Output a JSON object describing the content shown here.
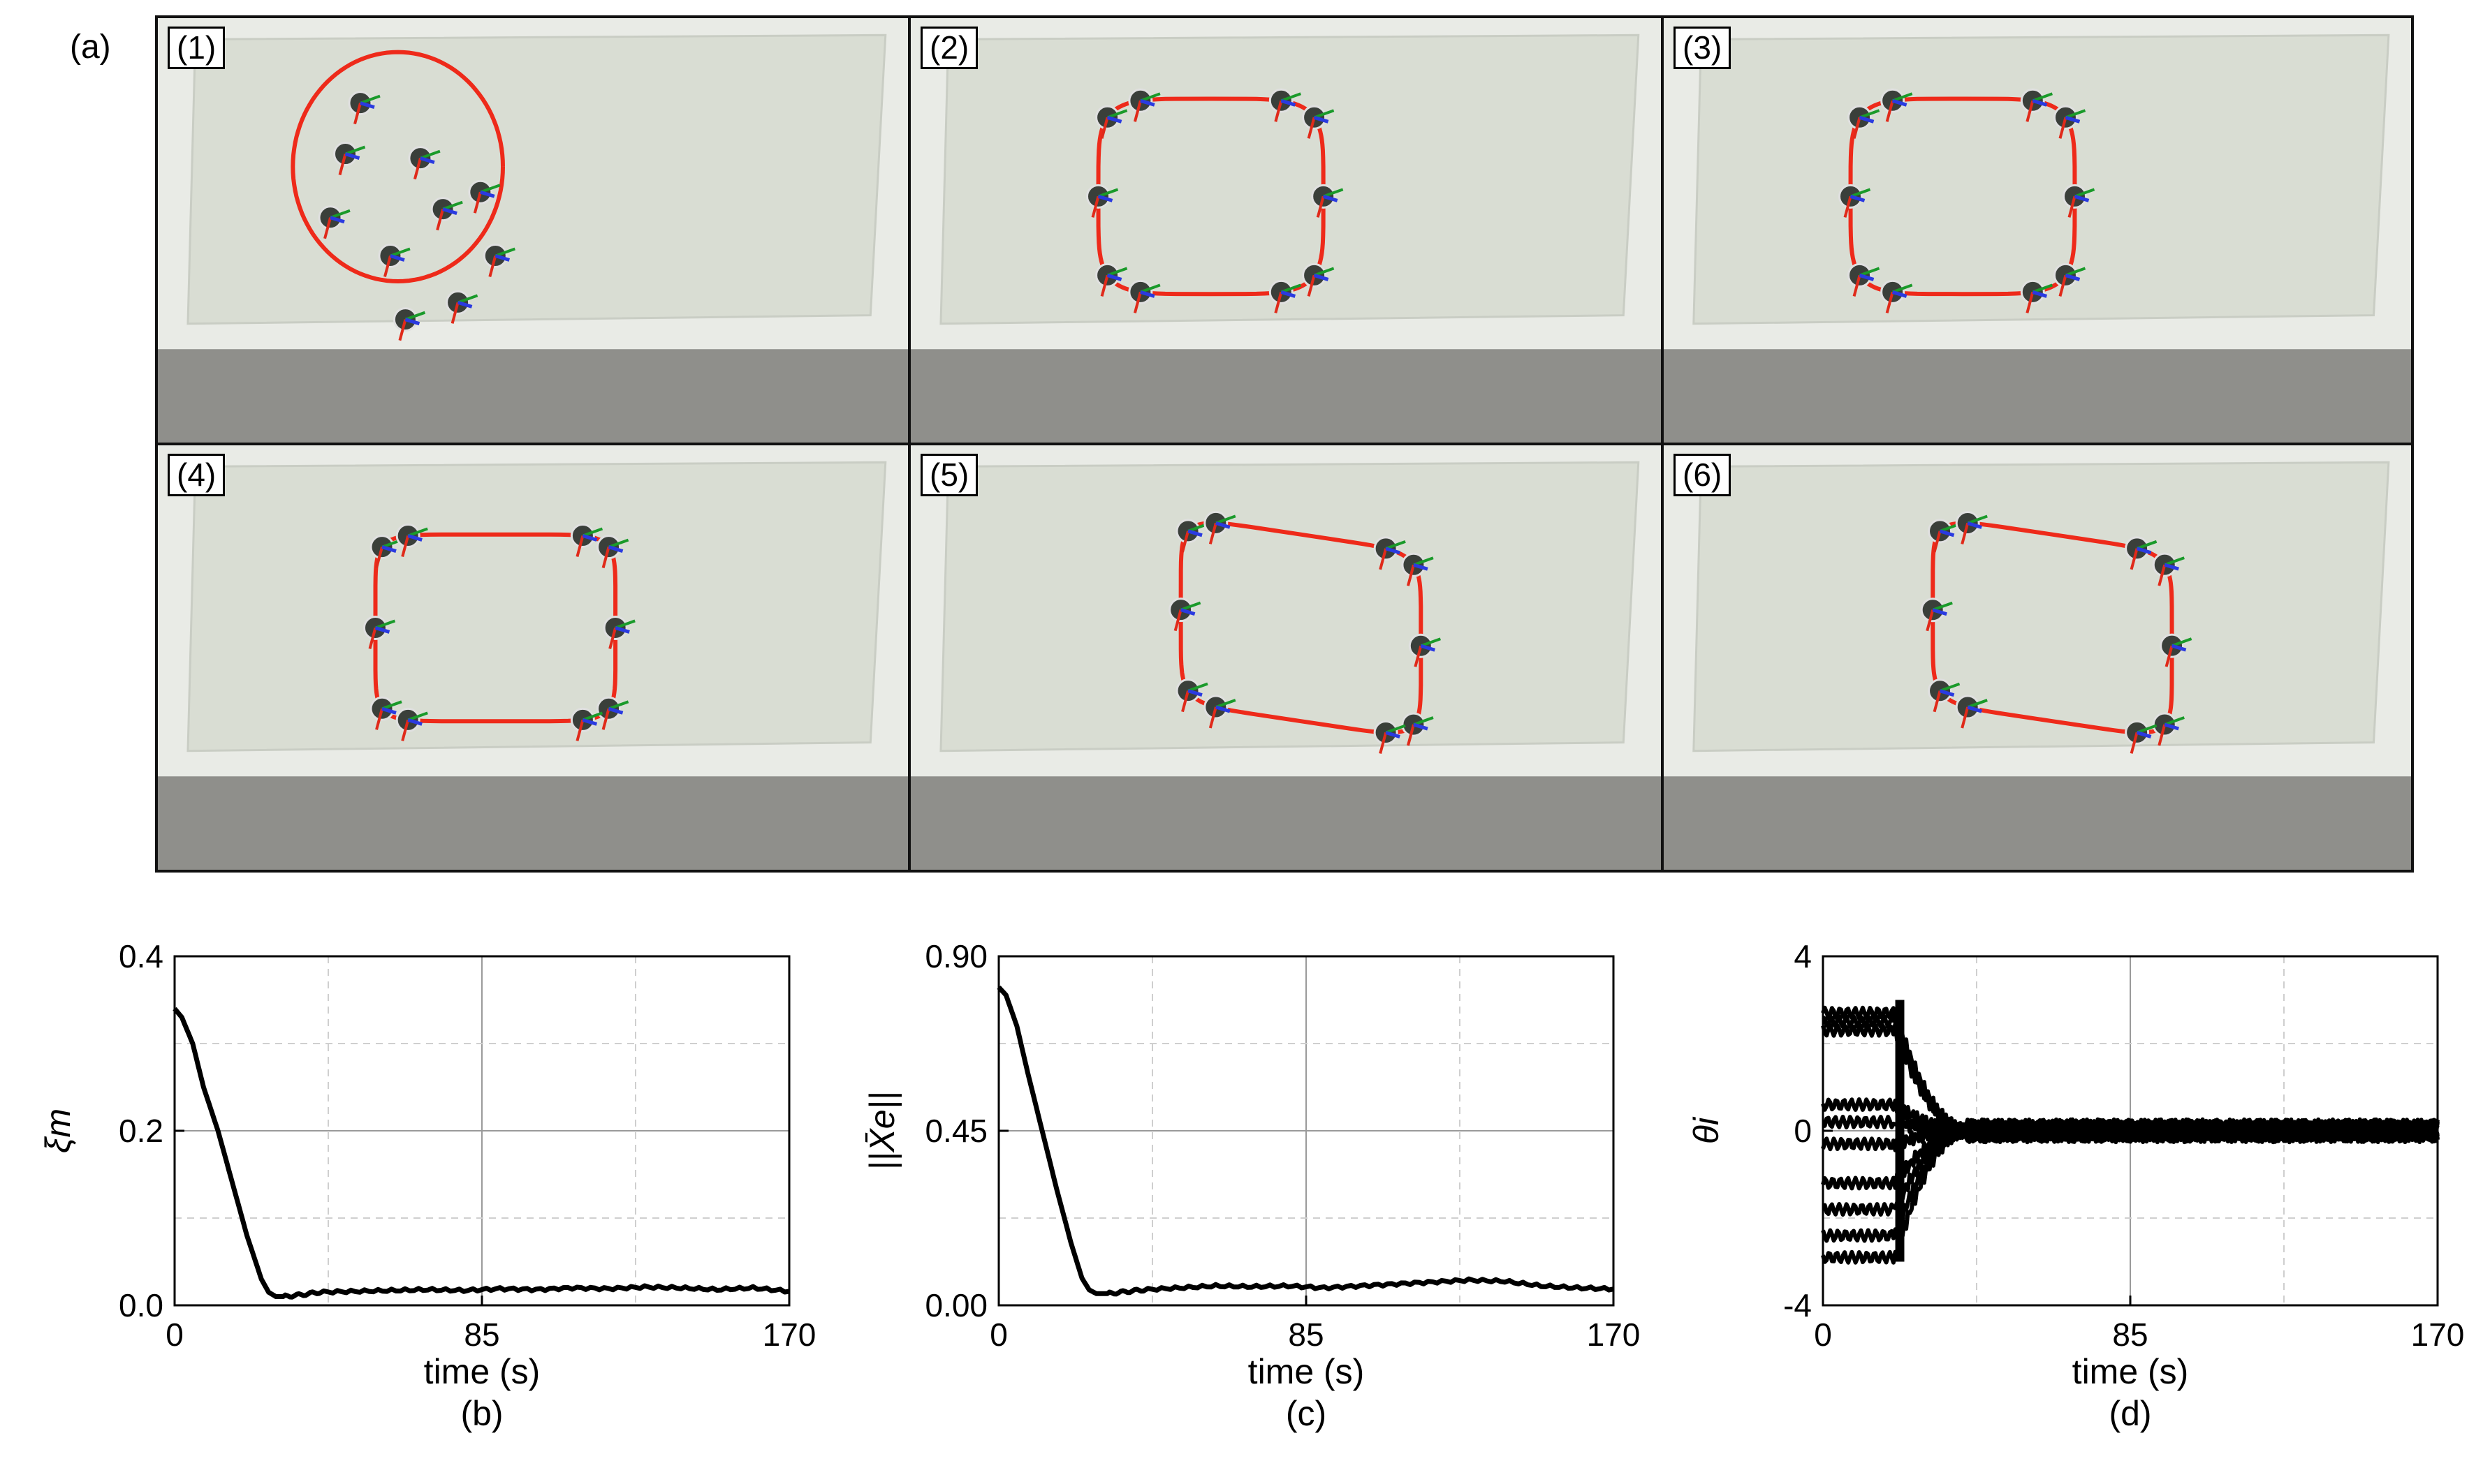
{
  "figure": {
    "label_a": "(a)",
    "panels": [
      {
        "tag": "(1)",
        "shape": "circle",
        "robots": 10
      },
      {
        "tag": "(2)",
        "shape": "round-square",
        "robots": 10
      },
      {
        "tag": "(3)",
        "shape": "round-square",
        "robots": 10
      },
      {
        "tag": "(4)",
        "shape": "square",
        "robots": 10
      },
      {
        "tag": "(5)",
        "shape": "skewed",
        "robots": 10
      },
      {
        "tag": "(6)",
        "shape": "skewed",
        "robots": 10
      }
    ],
    "colors": {
      "curve": "#ee2a1a",
      "board": "#d9ddd3",
      "floor": "#8f8f8b",
      "frame": "#111111"
    }
  },
  "chart_data": [
    {
      "type": "line",
      "sublabel": "(b)",
      "xlabel": "time (s)",
      "ylabel": "ξm",
      "xlim": [
        0,
        170
      ],
      "ylim": [
        0,
        0.4
      ],
      "xticks": [
        "0",
        "85",
        "170"
      ],
      "yticks": [
        "0.0",
        "0.2",
        "0.4"
      ],
      "grid": true,
      "series": [
        {
          "x": [
            0,
            2,
            5,
            8,
            12,
            16,
            20,
            24,
            26,
            28,
            30,
            35,
            40,
            50,
            60,
            70,
            80,
            90,
            100,
            110,
            120,
            130,
            140,
            150,
            160,
            170
          ],
          "y": [
            0.34,
            0.33,
            0.3,
            0.25,
            0.2,
            0.14,
            0.08,
            0.03,
            0.015,
            0.01,
            0.01,
            0.012,
            0.015,
            0.016,
            0.017,
            0.018,
            0.017,
            0.019,
            0.018,
            0.02,
            0.019,
            0.021,
            0.02,
            0.018,
            0.02,
            0.016
          ]
        }
      ]
    },
    {
      "type": "line",
      "sublabel": "(c)",
      "xlabel": "time (s)",
      "ylabel": "||X̄e||",
      "xlim": [
        0,
        170
      ],
      "ylim": [
        0,
        0.9
      ],
      "xticks": [
        "0",
        "85",
        "170"
      ],
      "yticks": [
        "0.00",
        "0.45",
        "0.90"
      ],
      "grid": true,
      "series": [
        {
          "x": [
            0,
            2,
            5,
            8,
            12,
            16,
            20,
            23,
            25,
            27,
            30,
            35,
            40,
            50,
            60,
            70,
            80,
            90,
            100,
            110,
            120,
            130,
            140,
            150,
            160,
            170
          ],
          "y": [
            0.82,
            0.8,
            0.72,
            0.6,
            0.45,
            0.3,
            0.16,
            0.07,
            0.04,
            0.03,
            0.03,
            0.035,
            0.04,
            0.045,
            0.05,
            0.048,
            0.05,
            0.045,
            0.05,
            0.055,
            0.06,
            0.065,
            0.062,
            0.05,
            0.045,
            0.042
          ]
        }
      ]
    },
    {
      "type": "line",
      "sublabel": "(d)",
      "xlabel": "time (s)",
      "ylabel": "θi",
      "xlim": [
        0,
        170
      ],
      "ylim": [
        -4,
        4
      ],
      "xticks": [
        "0",
        "85",
        "170"
      ],
      "yticks": [
        "-4",
        "0",
        "4"
      ],
      "grid": true,
      "series_start_values": [
        2.7,
        2.5,
        2.3,
        0.6,
        0.2,
        -0.3,
        -1.2,
        -1.8,
        -2.4,
        -2.9
      ]
    }
  ]
}
